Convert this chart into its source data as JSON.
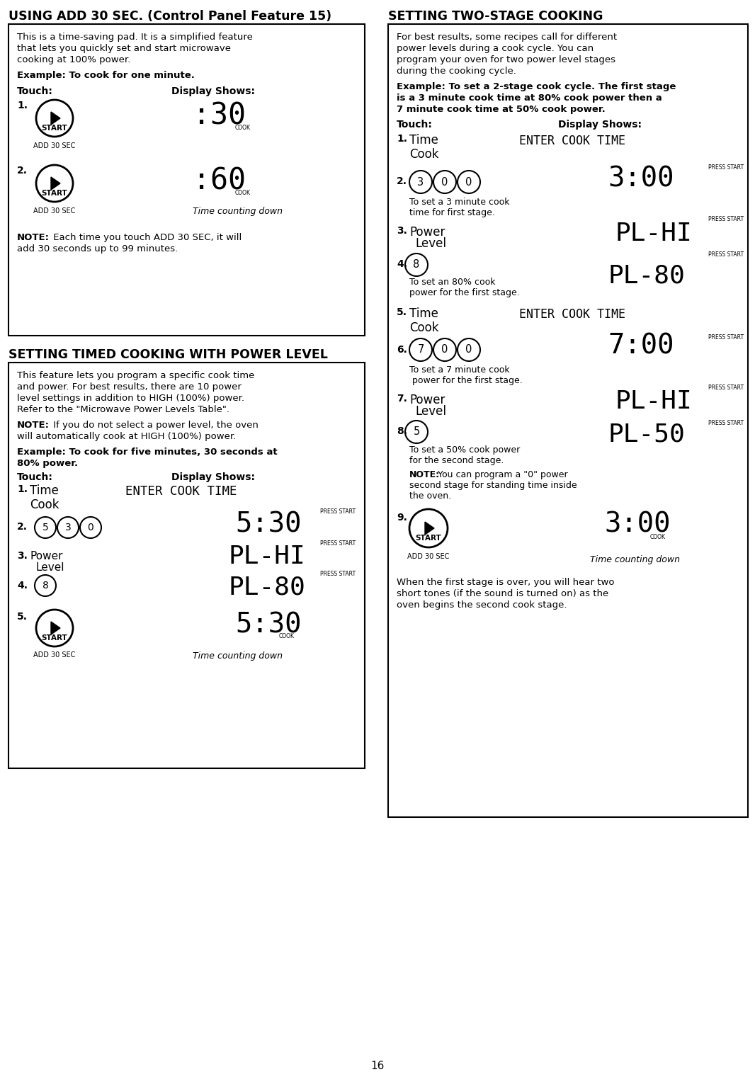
{
  "page_num": "16",
  "bg_color": "#ffffff",
  "left_title": "USING ADD 30 SEC. (Control Panel Feature 15)",
  "right_title": "SETTING TWO-STAGE COOKING",
  "middle_title": "SETTING TIMED COOKING WITH POWER LEVEL",
  "left_box1_line1": "This is a time-saving pad. It is a simplified feature",
  "left_box1_line2": "that lets you quickly set and start microwave",
  "left_box1_line3": "cooking at 100% power.",
  "left_box1_example": "Example: To cook for one minute.",
  "left_box1_touch": "Touch:",
  "left_box1_display": "Display Shows:",
  "left_box1_note1": "NOTE: Each time you touch ADD 30 SEC, it will",
  "left_box1_note2": "add 30 seconds up to 99 minutes.",
  "left_box2_line1": "This feature lets you program a specific cook time",
  "left_box2_line2": "and power. For best results, there are 10 power",
  "left_box2_line3": "level settings in addition to HIGH (100%) power.",
  "left_box2_line4": "Refer to the \"Microwave Power Levels Table\".",
  "left_box2_note1": "NOTE: If you do not select a power level, the oven",
  "left_box2_note2": "will automatically cook at HIGH (100%) power.",
  "left_box2_example1": "Example: To cook for five minutes, 30 seconds at",
  "left_box2_example2": "80% power.",
  "left_box2_touch": "Touch:",
  "left_box2_display": "Display Shows:",
  "right_intro1": "For best results, some recipes call for different",
  "right_intro2": "power levels during a cook cycle. You can",
  "right_intro3": "program your oven for two power level stages",
  "right_intro4": "during the cooking cycle.",
  "right_example1": "Example: To set a 2-stage cook cycle. The first stage",
  "right_example2": "is a 3 minute cook time at 80% cook power then a",
  "right_example3": "7 minute cook time at 50% cook power.",
  "right_touch": "Touch:",
  "right_display": "Display Shows:",
  "right_step2_desc1": "To set a 3 minute cook",
  "right_step2_desc2": "time for first stage.",
  "right_step4_desc1": "To set an 80% cook",
  "right_step4_desc2": "power for the first stage.",
  "right_step6_desc1": "To set a 7 minute cook",
  "right_step6_desc2": " power for the first stage.",
  "right_step8_desc1": "To set a 50% cook power",
  "right_step8_desc2": "for the second stage.",
  "right_note1": "NOTE:",
  "right_note2": "You can program a \"0\" power",
  "right_note3": "second stage for standing time inside",
  "right_note4": "the oven.",
  "right_end1": "When the first stage is over, you will hear two",
  "right_end2": "short tones (if the sound is turned on) as the",
  "right_end3": "oven begins the second cook stage.",
  "time_counting": "Time counting down",
  "add_30_sec": "ADD 30 SEC",
  "press_start": "PRESS START",
  "cook_label": "COOK"
}
